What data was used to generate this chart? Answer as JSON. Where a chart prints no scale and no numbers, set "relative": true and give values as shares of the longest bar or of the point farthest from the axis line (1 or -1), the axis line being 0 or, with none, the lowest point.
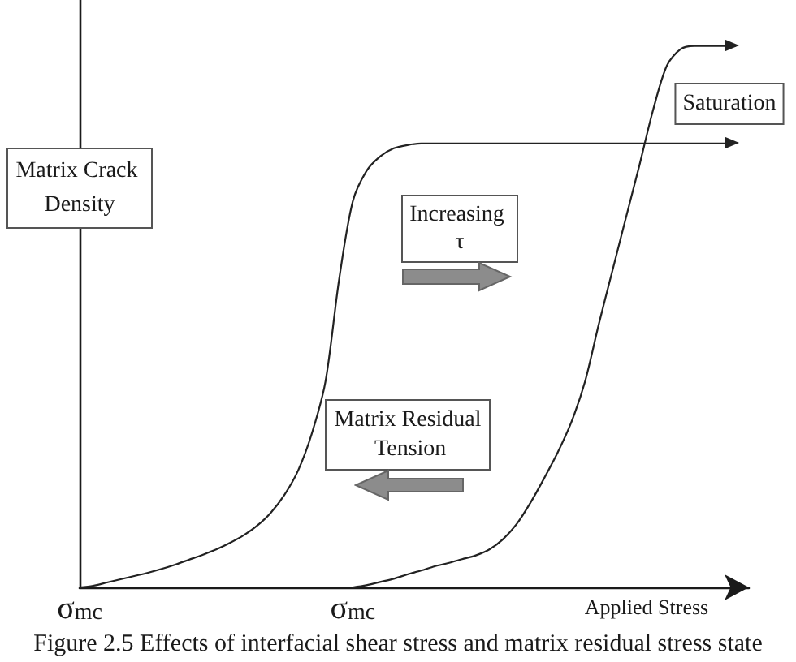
{
  "chart_data": {
    "type": "line",
    "relative": true,
    "xlabel": "Applied Stress",
    "ylabel": "Matrix Crack Density",
    "categories": [
      "σ$_{mc}$",
      null,
      null,
      null,
      null,
      null,
      null,
      null,
      null,
      null,
      null,
      null,
      null,
      null,
      null,
      null,
      null,
      null,
      null,
      null,
      "σ$_{mc}$",
      null,
      null,
      null,
      null,
      null,
      null,
      null,
      null,
      null,
      null,
      null,
      null,
      null,
      null,
      null,
      null,
      null,
      null,
      null,
      null,
      null,
      null,
      null,
      null,
      null,
      null,
      null,
      null,
      null
    ],
    "series": [
      {
        "color": "#222222",
        "values": [
          0,
          0.003,
          0.009,
          0.015,
          0.021,
          0.027,
          0.034,
          0.042,
          0.051,
          0.06,
          0.07,
          0.082,
          0.096,
          0.114,
          0.138,
          0.171,
          0.216,
          0.284,
          0.38,
          0.569,
          0.713,
          0.769,
          0.796,
          0.811,
          0.817,
          0.82,
          0.82,
          0.82,
          0.82,
          0.82,
          0.82,
          0.82,
          0.82,
          0.82,
          0.82,
          0.82,
          0.82,
          0.82,
          0.82,
          0.82,
          0.82,
          0.82,
          0.82,
          0.82,
          0.82,
          0.82,
          0.82,
          0.82,
          0.82,
          null
        ]
      },
      {
        "color": "#222222",
        "values": [
          null,
          null,
          null,
          null,
          null,
          null,
          null,
          null,
          null,
          null,
          null,
          null,
          null,
          null,
          null,
          null,
          null,
          null,
          null,
          null,
          0,
          0.004,
          0.01,
          0.016,
          0.024,
          0.031,
          0.039,
          0.045,
          0.052,
          0.059,
          0.07,
          0.089,
          0.117,
          0.156,
          0.201,
          0.249,
          0.305,
          0.38,
          0.485,
          0.584,
          0.683,
          0.781,
          0.883,
          0.964,
          0.994,
          1,
          1,
          1,
          1,
          null
        ]
      }
    ],
    "marker": "none",
    "line_style": "solid",
    "annotations": [
      "Saturation",
      "Increasing τ",
      "Matrix Residual Tension",
      "Figure 2.5 Effects of interfacial shear stress and matrix residual stress state"
    ]
  }
}
